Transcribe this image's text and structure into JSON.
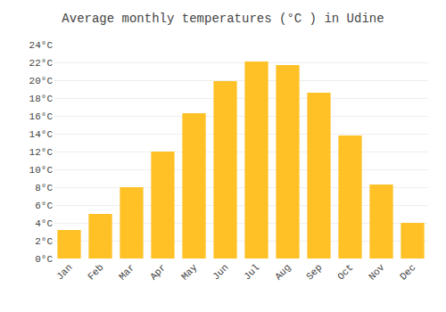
{
  "chart_data": {
    "type": "bar",
    "title": "Average monthly temperatures (°C ) in Udine",
    "categories": [
      "Jan",
      "Feb",
      "Mar",
      "Apr",
      "May",
      "Jun",
      "Jul",
      "Aug",
      "Sep",
      "Oct",
      "Nov",
      "Dec"
    ],
    "values": [
      3.2,
      5.0,
      8.0,
      12.0,
      16.3,
      19.9,
      22.1,
      21.7,
      18.6,
      13.8,
      8.3,
      4.0
    ],
    "color": "#FFC125",
    "ylim": [
      0,
      24
    ],
    "yticks": [
      {
        "value": 0,
        "label": "0°C"
      },
      {
        "value": 2,
        "label": "2°C"
      },
      {
        "value": 4,
        "label": "4°C"
      },
      {
        "value": 6,
        "label": "6°C"
      },
      {
        "value": 8,
        "label": "8°C"
      },
      {
        "value": 10,
        "label": "10°C"
      },
      {
        "value": 12,
        "label": "12°C"
      },
      {
        "value": 14,
        "label": "14°C"
      },
      {
        "value": 16,
        "label": "16°C"
      },
      {
        "value": 18,
        "label": "18°C"
      },
      {
        "value": 20,
        "label": "20°C"
      },
      {
        "value": 22,
        "label": "22°C"
      },
      {
        "value": 24,
        "label": "24°C"
      }
    ],
    "grid": true
  }
}
